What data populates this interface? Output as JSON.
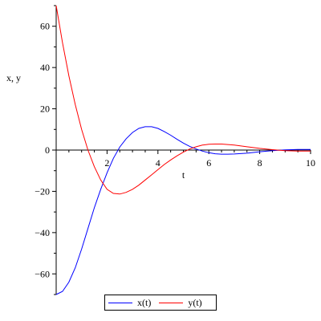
{
  "chart_data": {
    "type": "line",
    "title": "",
    "xlabel": "t",
    "ylabel": "x, y",
    "xlim": [
      0,
      10
    ],
    "ylim": [
      -70,
      70
    ],
    "x_ticks": [
      2,
      4,
      6,
      8,
      10
    ],
    "x_tick_labels": [
      "2",
      "4",
      "6",
      "8",
      "10"
    ],
    "y_ticks": [
      60,
      40,
      20,
      0,
      -20,
      -40,
      -60
    ],
    "y_tick_labels": [
      "60",
      "40",
      "20",
      "0",
      "−20",
      "−40",
      "−60"
    ],
    "legend_position": "bottom-center",
    "grid": false,
    "series": [
      {
        "name": "x(t)",
        "color": "#0000ff",
        "x": [
          0,
          0.25,
          0.5,
          0.75,
          1.0,
          1.25,
          1.5,
          1.75,
          2.0,
          2.25,
          2.5,
          2.75,
          3.0,
          3.25,
          3.5,
          3.75,
          4.0,
          4.25,
          4.5,
          4.75,
          5.0,
          5.25,
          5.5,
          5.75,
          6.0,
          6.25,
          6.5,
          6.75,
          7.0,
          7.5,
          8.0,
          8.5,
          9.0,
          9.5,
          10.0
        ],
        "y": [
          -70,
          -68.5,
          -64,
          -57,
          -48,
          -38,
          -28,
          -19,
          -11,
          -4,
          1.5,
          5.5,
          8.5,
          10.5,
          11.3,
          11.3,
          10.5,
          9,
          7.2,
          5.2,
          3.4,
          1.8,
          0.5,
          -0.5,
          -1.3,
          -1.8,
          -2,
          -2,
          -1.9,
          -1.5,
          -0.8,
          -0.3,
          0.1,
          0.3,
          0.3
        ]
      },
      {
        "name": "y(t)",
        "color": "#ff0000",
        "x": [
          0,
          0.25,
          0.5,
          0.75,
          1.0,
          1.25,
          1.5,
          1.75,
          2.0,
          2.25,
          2.5,
          2.75,
          3.0,
          3.25,
          3.5,
          3.75,
          4.0,
          4.25,
          4.5,
          4.75,
          5.0,
          5.25,
          5.5,
          5.75,
          6.0,
          6.25,
          6.5,
          6.75,
          7.0,
          7.5,
          8.0,
          8.5,
          9.0,
          9.5,
          10.0
        ],
        "y": [
          70,
          52,
          36,
          22,
          10,
          0,
          -8,
          -14.5,
          -19,
          -21,
          -21.3,
          -20.5,
          -19,
          -17,
          -14.5,
          -12,
          -9.5,
          -7,
          -4.8,
          -2.8,
          -1,
          0.5,
          1.6,
          2.4,
          2.8,
          2.9,
          2.9,
          2.7,
          2.4,
          1.6,
          0.8,
          0.2,
          -0.3,
          -0.5,
          -0.5
        ]
      }
    ]
  }
}
